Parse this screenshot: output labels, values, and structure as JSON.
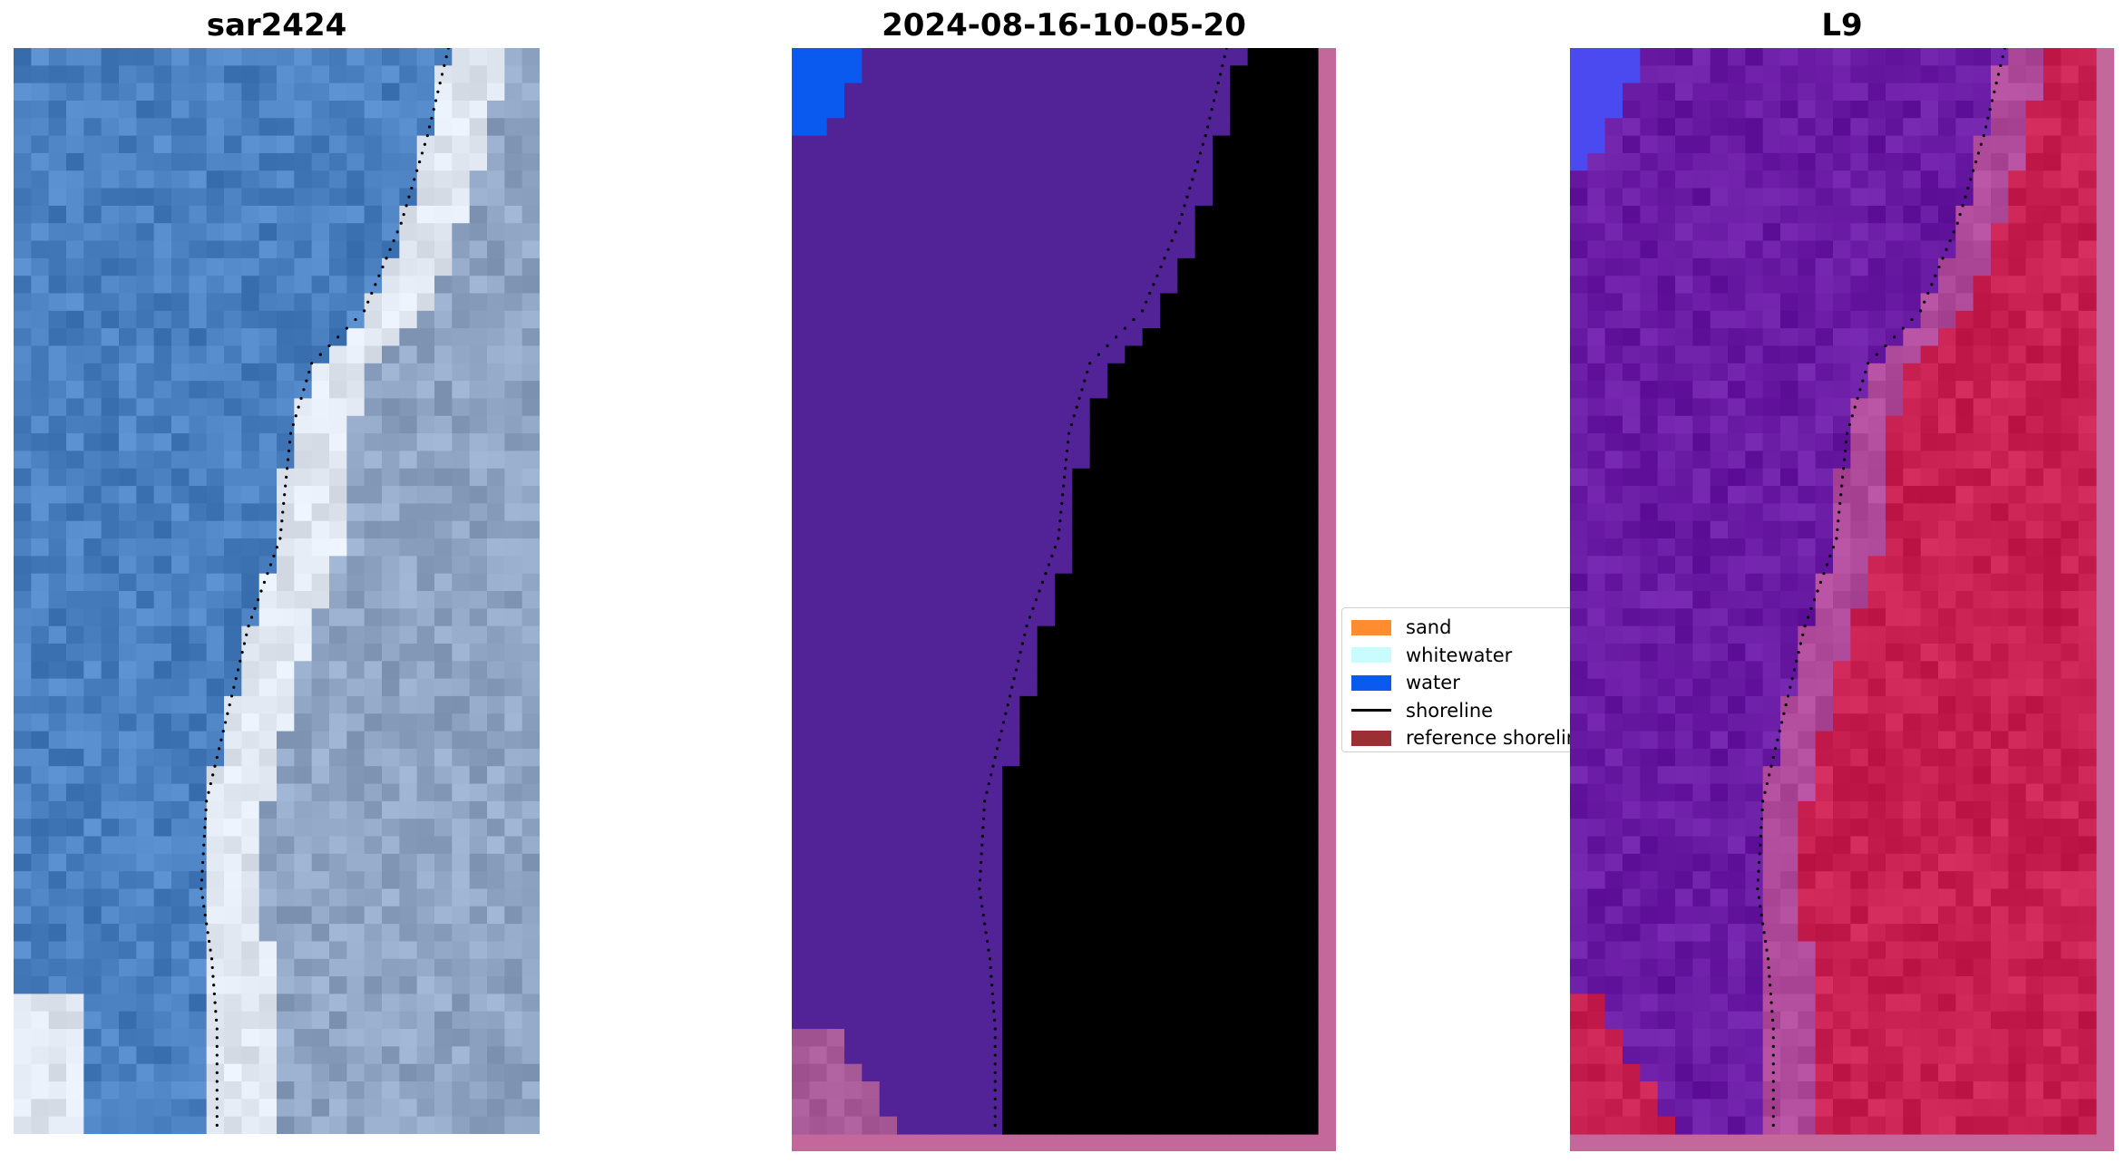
{
  "panels": [
    {
      "title": "sar2424",
      "kind": "rgb"
    },
    {
      "title": "2024-08-16-10-05-20",
      "kind": "classified"
    },
    {
      "title": "L9",
      "kind": "mndwi"
    }
  ],
  "legend": {
    "items": [
      {
        "label": "sand",
        "type": "patch",
        "color": "#ff8c2e"
      },
      {
        "label": "whitewater",
        "type": "patch",
        "color": "#c8fcff"
      },
      {
        "label": "water",
        "type": "patch",
        "color": "#0a5af0"
      },
      {
        "label": "shoreline",
        "type": "line",
        "color": "#000000"
      },
      {
        "label": "reference shoreline",
        "type": "patch",
        "color": "#9b2f33"
      }
    ]
  },
  "colors": {
    "ocean_rgb": "#4a80c0",
    "surf_rgb": "#dfe6f0",
    "classified_water": "#522396",
    "classified_land": "#a85a98",
    "classified_border": "#c4679a",
    "water_class": "#0a5af0",
    "mndwi_water": "#6a1ba4",
    "mndwi_land": "#c82050"
  }
}
